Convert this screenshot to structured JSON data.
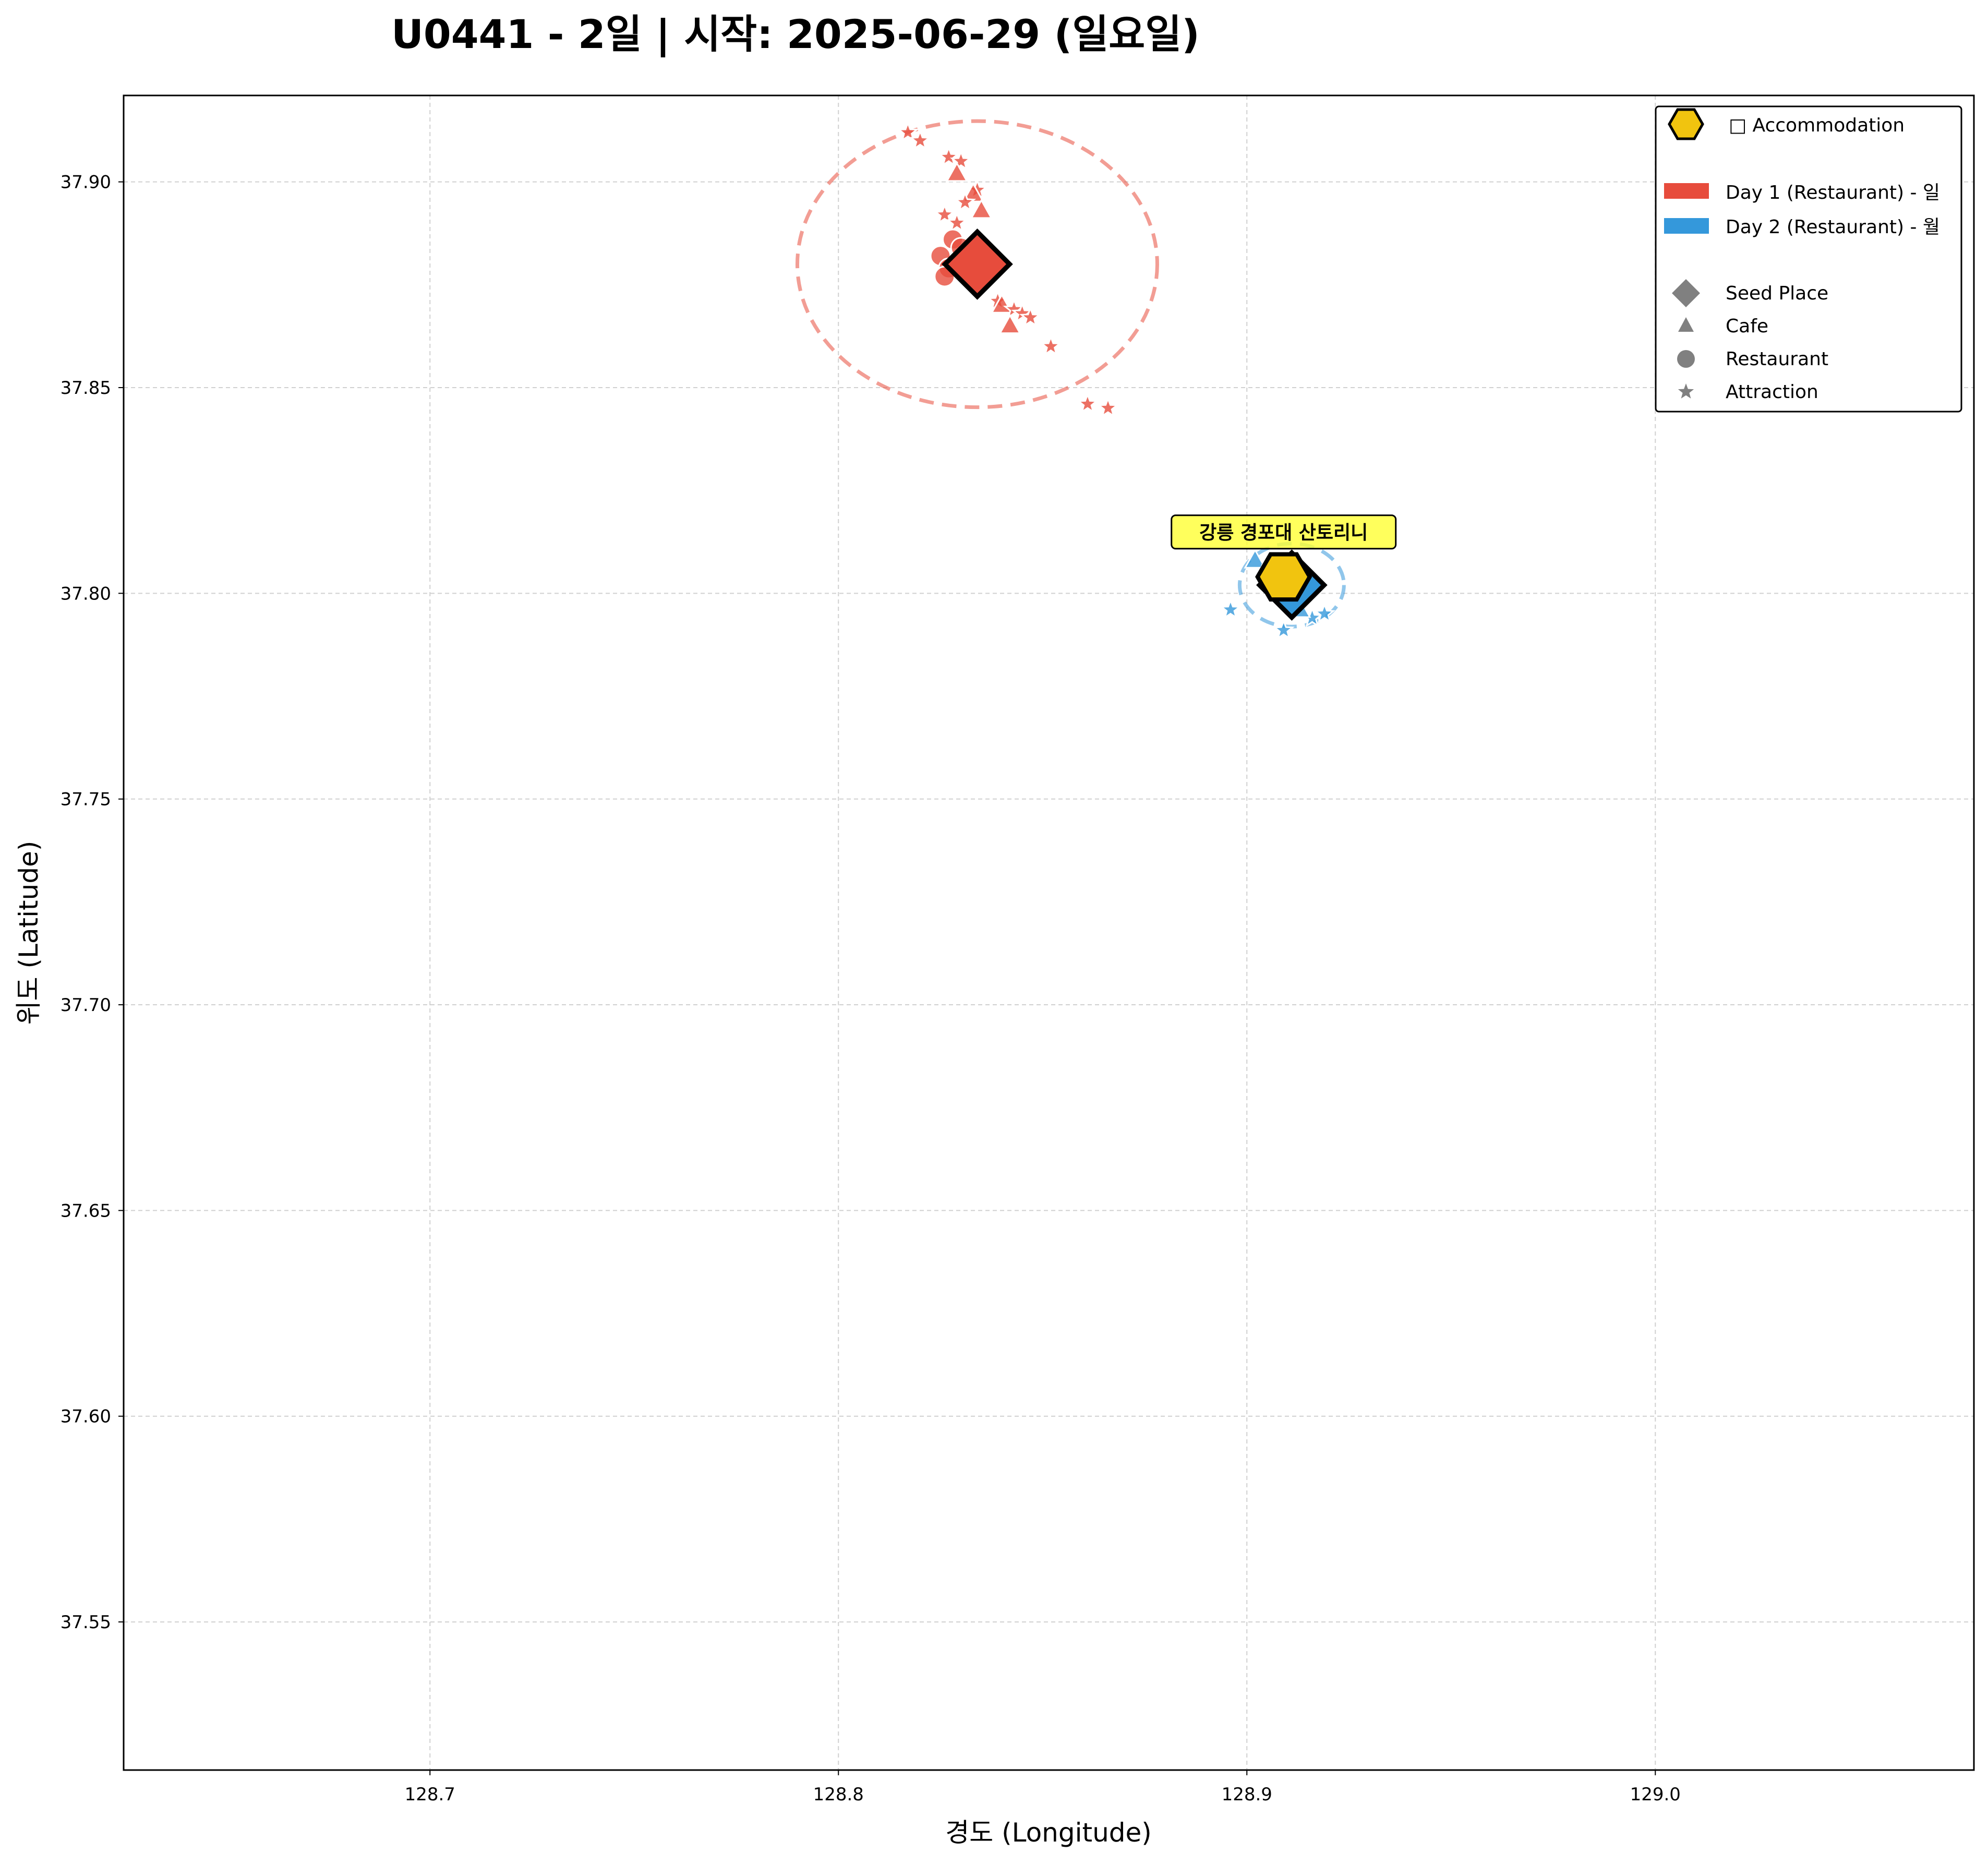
{
  "chart_data": {
    "type": "scatter",
    "title": "U0441 - 2일 | 시작: 2025-06-29 (일요일)",
    "xlabel": "경도 (Longitude)",
    "ylabel": "위도 (Latitude)",
    "xlim": [
      128.625,
      129.078
    ],
    "ylim": [
      37.514,
      37.921
    ],
    "xticks": [
      "128.7",
      "128.8",
      "128.9",
      "129.0"
    ],
    "yticks": [
      "37.55",
      "37.60",
      "37.65",
      "37.70",
      "37.75",
      "37.80",
      "37.85",
      "37.90"
    ],
    "grid": true,
    "legend_position": "top-right",
    "colors": {
      "day1": "#e74c3c",
      "day2": "#3498db",
      "accommodation": "#f1c40f",
      "legend_marker": "#808080",
      "annotation_bg": "#ffff33"
    },
    "legend": {
      "accommodation": "□ Accommodation",
      "day1": "Day 1 (Restaurant) - 일",
      "day2": "Day 2 (Restaurant) - 월",
      "seed": "Seed Place",
      "cafe": "Cafe",
      "restaurant": "Restaurant",
      "attraction": "Attraction"
    },
    "annotation": "강릉 경포대 산토리니",
    "series": [
      {
        "name": "Day 1 (Restaurant) - 일",
        "color": "#e74c3c",
        "seed": {
          "lon": 128.834,
          "lat": 37.88
        },
        "radius_km": 3.86,
        "points": [
          {
            "type": "attraction",
            "lon": 128.817,
            "lat": 37.912
          },
          {
            "type": "attraction",
            "lon": 128.82,
            "lat": 37.91
          },
          {
            "type": "attraction",
            "lon": 128.827,
            "lat": 37.906
          },
          {
            "type": "attraction",
            "lon": 128.83,
            "lat": 37.905
          },
          {
            "type": "cafe",
            "lon": 128.829,
            "lat": 37.902
          },
          {
            "type": "attraction",
            "lon": 128.834,
            "lat": 37.898
          },
          {
            "type": "cafe",
            "lon": 128.833,
            "lat": 37.897
          },
          {
            "type": "attraction",
            "lon": 128.831,
            "lat": 37.895
          },
          {
            "type": "cafe",
            "lon": 128.835,
            "lat": 37.893
          },
          {
            "type": "attraction",
            "lon": 128.826,
            "lat": 37.892
          },
          {
            "type": "attraction",
            "lon": 128.829,
            "lat": 37.89
          },
          {
            "type": "restaurant",
            "lon": 128.828,
            "lat": 37.886
          },
          {
            "type": "restaurant",
            "lon": 128.83,
            "lat": 37.884
          },
          {
            "type": "restaurant",
            "lon": 128.825,
            "lat": 37.882
          },
          {
            "type": "restaurant",
            "lon": 128.827,
            "lat": 37.879
          },
          {
            "type": "restaurant",
            "lon": 128.826,
            "lat": 37.877
          },
          {
            "type": "attraction",
            "lon": 128.839,
            "lat": 37.871
          },
          {
            "type": "cafe",
            "lon": 128.84,
            "lat": 37.87
          },
          {
            "type": "attraction",
            "lon": 128.843,
            "lat": 37.869
          },
          {
            "type": "attraction",
            "lon": 128.845,
            "lat": 37.868
          },
          {
            "type": "attraction",
            "lon": 128.847,
            "lat": 37.867
          },
          {
            "type": "cafe",
            "lon": 128.842,
            "lat": 37.865
          },
          {
            "type": "attraction",
            "lon": 128.852,
            "lat": 37.86
          },
          {
            "type": "attraction",
            "lon": 128.861,
            "lat": 37.846
          },
          {
            "type": "attraction",
            "lon": 128.866,
            "lat": 37.845
          }
        ]
      },
      {
        "name": "Day 2 (Restaurant) - 월",
        "color": "#3498db",
        "seed": {
          "lon": 128.911,
          "lat": 37.802
        },
        "radius_km": 1.12,
        "points": [
          {
            "type": "cafe",
            "lon": 128.902,
            "lat": 37.808
          },
          {
            "type": "restaurant",
            "lon": 128.906,
            "lat": 37.806
          },
          {
            "type": "attraction",
            "lon": 128.896,
            "lat": 37.796
          },
          {
            "type": "attraction",
            "lon": 128.909,
            "lat": 37.791
          },
          {
            "type": "attraction",
            "lon": 128.916,
            "lat": 37.794
          },
          {
            "type": "attraction",
            "lon": 128.919,
            "lat": 37.795
          },
          {
            "type": "cafe",
            "lon": 128.913,
            "lat": 37.796
          }
        ]
      }
    ],
    "accommodation": {
      "name": "강릉 경포대 산토리니",
      "lon": 128.909,
      "lat": 37.804
    }
  }
}
